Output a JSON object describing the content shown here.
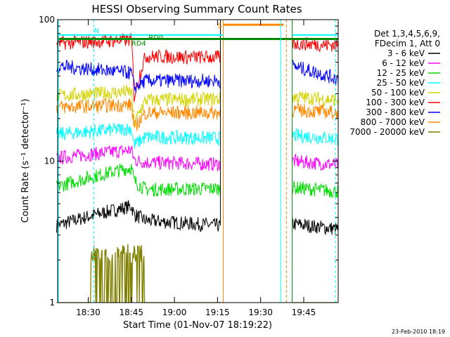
{
  "chart_data": {
    "type": "line",
    "title": "HESSI Observing Summary Count Rates",
    "xlabel": "Start Time (01-Nov-07 18:19:22)",
    "ylabel": "Count Rate (s⁻¹ detector⁻¹)",
    "y_scale": "log",
    "ylim": [
      1,
      100
    ],
    "x_range": [
      "18:19:22",
      "19:57:00"
    ],
    "x_ticks": [
      "18:30",
      "18:45",
      "19:00",
      "19:15",
      "19:30",
      "19:45"
    ],
    "y_ticks": [
      "1",
      "10",
      "100"
    ],
    "legend_header": [
      "Det 1,3,4,5,6,9,",
      "FDecim 1, Att 0"
    ],
    "legend_position": "right",
    "series": [
      {
        "name": "3 - 6 keV",
        "color": "#000000",
        "segments": [
          {
            "x": [
              "18:19",
              "18:45",
              "18:46",
              "18:50",
              "19:16"
            ],
            "y": [
              3.5,
              4.8,
              4.2,
              3.8,
              3.5
            ]
          },
          {
            "x": [
              "19:41",
              "19:57"
            ],
            "y": [
              3.6,
              3.3
            ]
          }
        ]
      },
      {
        "name": "6 - 12 keV",
        "color": "#ff00ff",
        "segments": [
          {
            "x": [
              "18:19",
              "18:45",
              "18:46",
              "18:50",
              "19:16"
            ],
            "y": [
              10.5,
              12.0,
              10.2,
              9.8,
              9.5
            ]
          },
          {
            "x": [
              "19:41",
              "19:57"
            ],
            "y": [
              10.0,
              9.4
            ]
          }
        ]
      },
      {
        "name": "12 - 25 keV",
        "color": "#00dd00",
        "segments": [
          {
            "x": [
              "18:19",
              "18:45",
              "18:46",
              "18:50",
              "19:16"
            ],
            "y": [
              6.6,
              9.0,
              7.2,
              6.3,
              6.4
            ]
          },
          {
            "x": [
              "19:41",
              "19:57"
            ],
            "y": [
              6.5,
              6.1
            ]
          }
        ]
      },
      {
        "name": "25 - 50 keV",
        "color": "#00ffff",
        "segments": [
          {
            "x": [
              "18:19",
              "18:45",
              "18:46",
              "18:50",
              "19:16"
            ],
            "y": [
              15.5,
              17.0,
              13.0,
              14.8,
              14.5
            ]
          },
          {
            "x": [
              "19:41",
              "19:57"
            ],
            "y": [
              15.2,
              14.4
            ]
          }
        ]
      },
      {
        "name": "50 - 100 keV",
        "color": "#d4d400",
        "segments": [
          {
            "x": [
              "18:19",
              "18:45",
              "18:46",
              "18:50",
              "19:16"
            ],
            "y": [
              29.0,
              31.0,
              18.0,
              27.0,
              27.5
            ]
          },
          {
            "x": [
              "19:41",
              "19:57"
            ],
            "y": [
              28.5,
              27.0
            ]
          }
        ]
      },
      {
        "name": "100 - 300 keV",
        "color": "#ff0000",
        "segments": [
          {
            "x": [
              "18:19",
              "18:45",
              "18:46",
              "18:50",
              "19:16"
            ],
            "y": [
              68.0,
              72.0,
              28.0,
              55.0,
              54.0
            ]
          },
          {
            "x": [
              "19:41",
              "19:57"
            ],
            "y": [
              68.0,
              66.0
            ]
          }
        ]
      },
      {
        "name": "300 - 800 keV",
        "color": "#0000ff",
        "segments": [
          {
            "x": [
              "18:19",
              "18:45",
              "18:46",
              "18:50",
              "19:16"
            ],
            "y": [
              47.0,
              42.0,
              33.0,
              37.0,
              37.0
            ]
          },
          {
            "x": [
              "19:41",
              "19:57"
            ],
            "y": [
              47.0,
              38.0
            ]
          }
        ]
      },
      {
        "name": "800 - 7000 keV",
        "color": "#ff8800",
        "segments": [
          {
            "x": [
              "18:19",
              "18:45",
              "18:46",
              "18:50",
              "19:16"
            ],
            "y": [
              24.0,
              25.0,
              17.0,
              22.0,
              22.0
            ]
          },
          {
            "x": [
              "19:41",
              "19:57"
            ],
            "y": [
              23.0,
              22.0
            ]
          }
        ]
      },
      {
        "name": "7000 - 20000 keV",
        "color": "#808000",
        "segments": [
          {
            "x": [
              "18:19",
              "18:45",
              "18:46",
              "18:50",
              "19:16"
            ],
            "y": [
              1.0,
              1.0,
              1.0,
              1.0,
              1.0
            ]
          },
          {
            "x": [
              "19:41",
              "19:57"
            ],
            "y": [
              1.0,
              1.0
            ]
          }
        ]
      }
    ],
    "annotations": [
      {
        "text": "N",
        "color": "#00ffff",
        "x": "18:32"
      },
      {
        "text": "RD0",
        "color": "#008800",
        "x": "18:51"
      },
      {
        "text": "RD4",
        "color": "#008800",
        "x": "18:45"
      },
      {
        "text": "S",
        "color": "#ff8800",
        "x": "19:15"
      }
    ],
    "footer": "23-Feb-2010 18:19"
  }
}
